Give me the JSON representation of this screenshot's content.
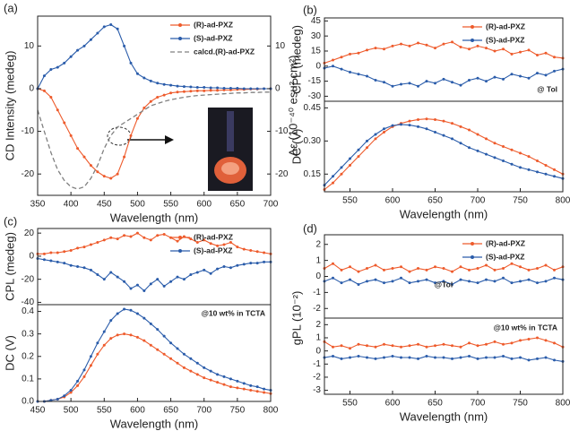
{
  "chart_data": [
    {
      "type": "line",
      "panel": "(a)",
      "xlabel": "Wavelength (nm)",
      "ylabel": "CD Intensity (medeg)",
      "y2label": "Δε (10⁻⁴⁰ esu² cm²)",
      "x": [
        350,
        360,
        370,
        380,
        390,
        400,
        410,
        420,
        430,
        440,
        450,
        460,
        470,
        480,
        490,
        500,
        510,
        520,
        530,
        540,
        550,
        560,
        570,
        580,
        590,
        600,
        610,
        620,
        630,
        640,
        650,
        660,
        670,
        680,
        690,
        700
      ],
      "xlim": [
        350,
        700
      ],
      "xticks": [
        350,
        400,
        450,
        500,
        550,
        600,
        650,
        700
      ],
      "ylim": [
        -25,
        17
      ],
      "yticks": [
        -20,
        -10,
        0,
        10
      ],
      "y2lim": [
        -25,
        17
      ],
      "y2ticks": [
        -20,
        -10,
        0,
        10
      ],
      "legend": "upper right",
      "series": [
        {
          "name": "(R)-ad-PXZ",
          "color": "#ee5b2c",
          "values": [
            0,
            -0.5,
            -2,
            -5,
            -8,
            -11,
            -14,
            -16,
            -18,
            -19.5,
            -20.5,
            -21,
            -20,
            -16,
            -11,
            -7,
            -4.5,
            -3,
            -2,
            -1.5,
            -1,
            -0.8,
            -0.7,
            -0.6,
            -0.5,
            -0.5,
            -0.4,
            -0.4,
            -0.3,
            -0.3,
            -0.2,
            -0.2,
            -0.1,
            -0.1,
            0,
            0
          ]
        },
        {
          "name": "(S)-ad-PXZ",
          "color": "#2a5caa",
          "values": [
            0,
            3,
            4.5,
            5,
            6,
            7.5,
            9,
            10,
            11.5,
            13,
            14.5,
            15,
            14,
            10,
            6,
            3.5,
            2.5,
            1.8,
            1.3,
            1,
            0.8,
            0.6,
            0.5,
            0.4,
            0.3,
            0.3,
            0.2,
            0.2,
            0.1,
            0.1,
            0.1,
            0,
            0,
            0,
            0,
            0
          ]
        },
        {
          "name": "calcd.(R)-ad-PXZ",
          "color": "#808080",
          "axis": "y2",
          "dash": true,
          "values": [
            -5,
            -10,
            -15,
            -19,
            -21.5,
            -23,
            -23.5,
            -23,
            -21,
            -18,
            -14,
            -11,
            -9,
            -8,
            -7,
            -6,
            -5,
            -4,
            -3.5,
            -3,
            -2.6,
            -2.3,
            -2,
            -1.8,
            -1.6,
            -1.5,
            -1.4,
            -1.3,
            -1.2,
            -1.1,
            -1,
            -1,
            -0.9,
            -0.9,
            -0.8,
            -0.8
          ]
        }
      ]
    },
    {
      "type": "line",
      "panel": "(b)",
      "ylabel": "CPL  (medeg)",
      "annotation": "@ Tol",
      "x": [
        520,
        530,
        540,
        550,
        560,
        570,
        580,
        590,
        600,
        610,
        620,
        630,
        640,
        650,
        660,
        670,
        680,
        690,
        700,
        710,
        720,
        730,
        740,
        750,
        760,
        770,
        780,
        790,
        800
      ],
      "xlim": [
        520,
        800
      ],
      "ylim": [
        -35,
        48
      ],
      "yticks": [
        -30,
        -15,
        0,
        15,
        30,
        45
      ],
      "legend": "upper right",
      "series": [
        {
          "name": "(R)-ad-PXZ",
          "color": "#ee5b2c",
          "values": [
            3,
            6,
            9,
            12,
            13,
            16,
            18,
            17,
            20,
            22,
            20,
            23,
            21,
            18,
            22,
            24,
            19,
            17,
            20,
            18,
            15,
            17,
            12,
            14,
            16,
            11,
            13,
            9,
            8
          ]
        },
        {
          "name": "(S)-ad-PXZ",
          "color": "#2a5caa",
          "values": [
            -2,
            0,
            -3,
            -6,
            -8,
            -10,
            -14,
            -16,
            -20,
            -18,
            -17,
            -20,
            -15,
            -17,
            -13,
            -16,
            -19,
            -14,
            -12,
            -15,
            -11,
            -13,
            -8,
            -10,
            -12,
            -7,
            -9,
            -5,
            -3
          ]
        }
      ]
    },
    {
      "type": "line",
      "xlabel": "Wavelength (nm)",
      "ylabel": "DC (V)",
      "x": [
        520,
        530,
        540,
        550,
        560,
        570,
        580,
        590,
        600,
        610,
        620,
        630,
        640,
        650,
        660,
        670,
        680,
        690,
        700,
        710,
        720,
        730,
        740,
        750,
        760,
        770,
        780,
        790,
        800
      ],
      "xlim": [
        520,
        800
      ],
      "xticks": [
        550,
        600,
        650,
        700,
        750,
        800
      ],
      "ylim": [
        0.07,
        0.48
      ],
      "yticks": [
        0.15,
        {
          "value": 0.3,
          "label": "0.30"
        },
        0.45
      ],
      "series": [
        {
          "color": "#ee5b2c",
          "values": [
            0.08,
            0.11,
            0.15,
            0.19,
            0.23,
            0.27,
            0.31,
            0.34,
            0.365,
            0.38,
            0.39,
            0.397,
            0.4,
            0.397,
            0.39,
            0.38,
            0.365,
            0.35,
            0.33,
            0.31,
            0.29,
            0.275,
            0.26,
            0.245,
            0.23,
            0.21,
            0.19,
            0.17,
            0.15
          ]
        },
        {
          "color": "#2a5caa",
          "values": [
            0.1,
            0.14,
            0.18,
            0.22,
            0.26,
            0.3,
            0.33,
            0.355,
            0.37,
            0.375,
            0.372,
            0.365,
            0.355,
            0.34,
            0.325,
            0.31,
            0.29,
            0.27,
            0.255,
            0.24,
            0.225,
            0.21,
            0.195,
            0.18,
            0.17,
            0.16,
            0.15,
            0.14,
            0.13
          ]
        }
      ]
    },
    {
      "type": "line",
      "panel": "(c)",
      "ylabel": "CPL  (medeg)",
      "x": [
        450,
        460,
        470,
        480,
        490,
        500,
        510,
        520,
        530,
        540,
        550,
        560,
        570,
        580,
        590,
        600,
        610,
        620,
        630,
        640,
        650,
        660,
        670,
        680,
        690,
        700,
        710,
        720,
        730,
        740,
        750,
        760,
        770,
        780,
        790,
        800
      ],
      "xlim": [
        450,
        800
      ],
      "ylim": [
        -42,
        24
      ],
      "yticks": [
        -40,
        -20,
        0,
        20
      ],
      "legend": "upper right",
      "series": [
        {
          "name": "(R)-ad-PXZ",
          "color": "#ee5b2c",
          "values": [
            2,
            2,
            3,
            3,
            4,
            5,
            7,
            8,
            10,
            12,
            14,
            16,
            15,
            18,
            17,
            20,
            16,
            14,
            18,
            19,
            16,
            13,
            17,
            15,
            12,
            14,
            11,
            9,
            10,
            12,
            8,
            6,
            5,
            4,
            3,
            2
          ]
        },
        {
          "name": "(S)-ad-PXZ",
          "color": "#2a5caa",
          "values": [
            -2,
            -3,
            -4,
            -5,
            -6,
            -8,
            -9,
            -10,
            -12,
            -16,
            -20,
            -14,
            -18,
            -22,
            -28,
            -25,
            -30,
            -24,
            -20,
            -26,
            -22,
            -18,
            -20,
            -16,
            -14,
            -12,
            -15,
            -11,
            -9,
            -10,
            -8,
            -7,
            -6,
            -6,
            -5,
            -5
          ]
        }
      ]
    },
    {
      "type": "line",
      "xlabel": "Wavelength (nm)",
      "ylabel": "DC (V)",
      "annotation": "@10 wt% in TCTA",
      "x": [
        450,
        460,
        470,
        480,
        490,
        500,
        510,
        520,
        530,
        540,
        550,
        560,
        570,
        580,
        590,
        600,
        610,
        620,
        630,
        640,
        650,
        660,
        670,
        680,
        690,
        700,
        710,
        720,
        730,
        740,
        750,
        760,
        770,
        780,
        790,
        800
      ],
      "xlim": [
        450,
        800
      ],
      "xticks": [
        450,
        500,
        550,
        600,
        650,
        700,
        750,
        800
      ],
      "ylim": [
        0,
        0.43
      ],
      "yticks": [
        {
          "value": 0,
          "label": "0.0"
        },
        0.1,
        0.2,
        0.3,
        0.4
      ],
      "series": [
        {
          "color": "#ee5b2c",
          "values": [
            0,
            0,
            0.005,
            0.01,
            0.02,
            0.04,
            0.07,
            0.11,
            0.16,
            0.21,
            0.25,
            0.28,
            0.295,
            0.3,
            0.295,
            0.285,
            0.27,
            0.25,
            0.23,
            0.21,
            0.19,
            0.17,
            0.15,
            0.135,
            0.12,
            0.105,
            0.095,
            0.085,
            0.075,
            0.065,
            0.06,
            0.055,
            0.05,
            0.045,
            0.04,
            0.035
          ]
        },
        {
          "color": "#2a5caa",
          "values": [
            0,
            0,
            0.005,
            0.01,
            0.025,
            0.05,
            0.09,
            0.14,
            0.2,
            0.26,
            0.31,
            0.36,
            0.39,
            0.41,
            0.405,
            0.39,
            0.37,
            0.345,
            0.32,
            0.29,
            0.26,
            0.235,
            0.21,
            0.19,
            0.17,
            0.15,
            0.135,
            0.12,
            0.11,
            0.1,
            0.09,
            0.08,
            0.07,
            0.065,
            0.055,
            0.05
          ]
        }
      ]
    },
    {
      "type": "line",
      "panel": "(d)",
      "ylabel": "gPL (10⁻²)",
      "annotation": "@Tol",
      "x": [
        520,
        530,
        540,
        550,
        560,
        570,
        580,
        590,
        600,
        610,
        620,
        630,
        640,
        650,
        660,
        670,
        680,
        690,
        700,
        710,
        720,
        730,
        740,
        750,
        760,
        770,
        780,
        790,
        800
      ],
      "xlim": [
        520,
        800
      ],
      "ylim": [
        -2.6,
        2.6
      ],
      "yticks": [
        -2,
        -1,
        0,
        1,
        2
      ],
      "legend": "upper right",
      "series": [
        {
          "name": "(R)-ad-PXZ",
          "color": "#ee5b2c",
          "values": [
            0.5,
            0.8,
            0.4,
            0.6,
            0.3,
            0.5,
            0.7,
            0.4,
            0.5,
            0.6,
            0.3,
            0.5,
            0.4,
            0.6,
            0.5,
            0.3,
            0.6,
            0.4,
            0.5,
            0.7,
            0.4,
            0.5,
            0.8,
            0.6,
            0.4,
            0.5,
            0.7,
            0.4,
            0.6
          ]
        },
        {
          "name": "(S)-ad-PXZ",
          "color": "#2a5caa",
          "values": [
            -0.3,
            -0.1,
            -0.4,
            -0.2,
            -0.5,
            -0.3,
            -0.2,
            -0.4,
            -0.3,
            -0.1,
            -0.4,
            -0.3,
            -0.2,
            -0.4,
            -0.3,
            -0.5,
            -0.2,
            -0.3,
            -0.4,
            -0.2,
            -0.3,
            -0.1,
            -0.4,
            -0.3,
            -0.2,
            -0.4,
            -0.3,
            -0.1,
            -0.2
          ]
        }
      ]
    },
    {
      "type": "line",
      "xlabel": "Wavelength (nm)",
      "annotation": "@10 wt% in TCTA",
      "x": [
        520,
        530,
        540,
        550,
        560,
        570,
        580,
        590,
        600,
        610,
        620,
        630,
        640,
        650,
        660,
        670,
        680,
        690,
        700,
        710,
        720,
        730,
        740,
        750,
        760,
        770,
        780,
        790,
        800
      ],
      "xlim": [
        520,
        800
      ],
      "xticks": [
        550,
        600,
        650,
        700,
        750,
        800
      ],
      "ylim": [
        -3.3,
        2.5
      ],
      "yticks": [
        -3,
        -2,
        -1,
        0,
        1,
        2
      ],
      "series": [
        {
          "color": "#ee5b2c",
          "values": [
            0.7,
            0.3,
            0.4,
            0.2,
            0.5,
            0.4,
            0.3,
            0.5,
            0.4,
            0.3,
            0.4,
            0.5,
            0.3,
            0.4,
            0.5,
            0.4,
            0.3,
            0.6,
            0.4,
            0.5,
            0.7,
            0.5,
            0.6,
            0.8,
            0.9,
            1.0,
            0.8,
            0.6,
            0.3
          ]
        },
        {
          "color": "#2a5caa",
          "values": [
            -0.5,
            -0.4,
            -0.6,
            -0.5,
            -0.4,
            -0.5,
            -0.6,
            -0.5,
            -0.4,
            -0.5,
            -0.5,
            -0.6,
            -0.4,
            -0.5,
            -0.5,
            -0.6,
            -0.5,
            -0.4,
            -0.6,
            -0.5,
            -0.5,
            -0.4,
            -0.6,
            -0.5,
            -0.7,
            -0.6,
            -0.5,
            -0.7,
            -0.8
          ]
        }
      ]
    }
  ]
}
